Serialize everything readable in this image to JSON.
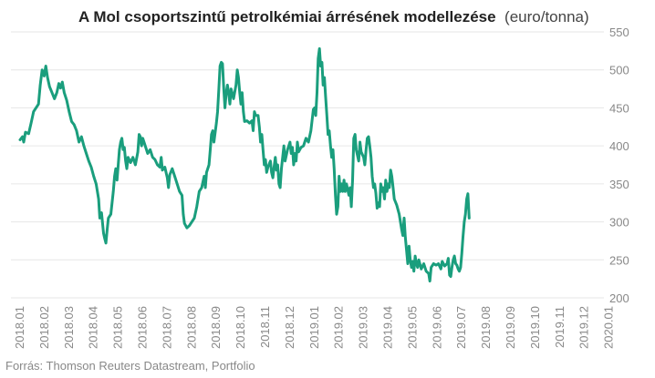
{
  "source": "Forrás: Thomson Reuters Datastream, Portfolio",
  "colors": {
    "line": "#1a9e7d",
    "grid": "#e6e6e6",
    "axis": "#888888"
  },
  "chart_data": {
    "type": "line",
    "title": "A Mol csoportszintű petrolkémiai árrésének modellezése",
    "title_unit": "(euro/tonna)",
    "ylim": [
      200,
      550
    ],
    "yticks": [
      "200",
      "250",
      "300",
      "350",
      "400",
      "450",
      "500",
      "550"
    ],
    "y_axis_position": "right",
    "grid": true,
    "categories": [
      "2018.01",
      "2018.02",
      "2018.03",
      "2018.04",
      "2018.05",
      "2018.06",
      "2018.07",
      "2018.08",
      "2018.09",
      "2018.10",
      "2018.11",
      "2018.12",
      "2019.01",
      "2019.02",
      "2019.03",
      "2019.04",
      "2019.05",
      "2019.06",
      "2019.07",
      "2019.08",
      "2019.09",
      "2019.10",
      "2019.11",
      "2019.12",
      "2020.01"
    ],
    "series": [
      {
        "values": [
          [
            0.0,
            408
          ],
          [
            0.1,
            412
          ],
          [
            0.15,
            405
          ],
          [
            0.22,
            418
          ],
          [
            0.35,
            416
          ],
          [
            0.45,
            430
          ],
          [
            0.55,
            445
          ],
          [
            0.65,
            450
          ],
          [
            0.75,
            455
          ],
          [
            0.82,
            480
          ],
          [
            0.9,
            500
          ],
          [
            0.98,
            492
          ],
          [
            1.05,
            505
          ],
          [
            1.12,
            490
          ],
          [
            1.2,
            478
          ],
          [
            1.3,
            470
          ],
          [
            1.4,
            462
          ],
          [
            1.5,
            470
          ],
          [
            1.58,
            482
          ],
          [
            1.65,
            476
          ],
          [
            1.72,
            484
          ],
          [
            1.8,
            470
          ],
          [
            1.9,
            460
          ],
          [
            2.0,
            445
          ],
          [
            2.1,
            432
          ],
          [
            2.2,
            428
          ],
          [
            2.3,
            420
          ],
          [
            2.4,
            405
          ],
          [
            2.5,
            412
          ],
          [
            2.6,
            400
          ],
          [
            2.7,
            390
          ],
          [
            2.8,
            380
          ],
          [
            2.9,
            372
          ],
          [
            3.0,
            360
          ],
          [
            3.1,
            350
          ],
          [
            3.2,
            330
          ],
          [
            3.25,
            305
          ],
          [
            3.32,
            312
          ],
          [
            3.4,
            285
          ],
          [
            3.45,
            278
          ],
          [
            3.5,
            272
          ],
          [
            3.55,
            290
          ],
          [
            3.6,
            305
          ],
          [
            3.7,
            310
          ],
          [
            3.8,
            340
          ],
          [
            3.85,
            360
          ],
          [
            3.9,
            370
          ],
          [
            3.95,
            355
          ],
          [
            4.0,
            375
          ],
          [
            4.05,
            395
          ],
          [
            4.1,
            405
          ],
          [
            4.15,
            410
          ],
          [
            4.2,
            395
          ],
          [
            4.25,
            398
          ],
          [
            4.3,
            380
          ],
          [
            4.35,
            370
          ],
          [
            4.4,
            385
          ],
          [
            4.5,
            378
          ],
          [
            4.6,
            385
          ],
          [
            4.7,
            375
          ],
          [
            4.8,
            392
          ],
          [
            4.85,
            415
          ],
          [
            4.9,
            412
          ],
          [
            4.95,
            400
          ],
          [
            5.0,
            410
          ],
          [
            5.1,
            400
          ],
          [
            5.2,
            390
          ],
          [
            5.3,
            395
          ],
          [
            5.4,
            385
          ],
          [
            5.5,
            382
          ],
          [
            5.6,
            375
          ],
          [
            5.7,
            372
          ],
          [
            5.75,
            385
          ],
          [
            5.8,
            368
          ],
          [
            5.9,
            372
          ],
          [
            6.0,
            358
          ],
          [
            6.05,
            345
          ],
          [
            6.1,
            362
          ],
          [
            6.2,
            370
          ],
          [
            6.3,
            360
          ],
          [
            6.4,
            350
          ],
          [
            6.5,
            340
          ],
          [
            6.6,
            335
          ],
          [
            6.65,
            310
          ],
          [
            6.7,
            298
          ],
          [
            6.8,
            292
          ],
          [
            6.9,
            295
          ],
          [
            7.0,
            300
          ],
          [
            7.1,
            305
          ],
          [
            7.2,
            320
          ],
          [
            7.3,
            340
          ],
          [
            7.4,
            345
          ],
          [
            7.5,
            360
          ],
          [
            7.55,
            345
          ],
          [
            7.6,
            365
          ],
          [
            7.7,
            375
          ],
          [
            7.75,
            395
          ],
          [
            7.8,
            415
          ],
          [
            7.85,
            420
          ],
          [
            7.9,
            405
          ],
          [
            8.0,
            430
          ],
          [
            8.05,
            445
          ],
          [
            8.1,
            475
          ],
          [
            8.15,
            505
          ],
          [
            8.2,
            510
          ],
          [
            8.25,
            508
          ],
          [
            8.3,
            475
          ],
          [
            8.35,
            450
          ],
          [
            8.4,
            470
          ],
          [
            8.45,
            480
          ],
          [
            8.5,
            470
          ],
          [
            8.55,
            455
          ],
          [
            8.6,
            475
          ],
          [
            8.7,
            462
          ],
          [
            8.8,
            480
          ],
          [
            8.85,
            500
          ],
          [
            8.9,
            490
          ],
          [
            8.95,
            470
          ],
          [
            9.0,
            455
          ],
          [
            9.05,
            470
          ],
          [
            9.1,
            445
          ],
          [
            9.15,
            432
          ],
          [
            9.25,
            433
          ],
          [
            9.35,
            430
          ],
          [
            9.45,
            433
          ],
          [
            9.5,
            420
          ],
          [
            9.55,
            445
          ],
          [
            9.6,
            440
          ],
          [
            9.7,
            440
          ],
          [
            9.75,
            425
          ],
          [
            9.8,
            405
          ],
          [
            9.85,
            415
          ],
          [
            9.9,
            395
          ],
          [
            9.95,
            375
          ],
          [
            10.0,
            382
          ],
          [
            10.05,
            365
          ],
          [
            10.1,
            372
          ],
          [
            10.2,
            380
          ],
          [
            10.25,
            365
          ],
          [
            10.3,
            358
          ],
          [
            10.35,
            372
          ],
          [
            10.4,
            385
          ],
          [
            10.45,
            368
          ],
          [
            10.5,
            375
          ],
          [
            10.55,
            350
          ],
          [
            10.6,
            345
          ],
          [
            10.65,
            370
          ],
          [
            10.75,
            400
          ],
          [
            10.8,
            380
          ],
          [
            10.9,
            395
          ],
          [
            11.0,
            405
          ],
          [
            11.05,
            390
          ],
          [
            11.1,
            398
          ],
          [
            11.15,
            375
          ],
          [
            11.2,
            390
          ],
          [
            11.25,
            380
          ],
          [
            11.3,
            405
          ],
          [
            11.35,
            392
          ],
          [
            11.45,
            398
          ],
          [
            11.55,
            400
          ],
          [
            11.65,
            410
          ],
          [
            11.75,
            405
          ],
          [
            11.85,
            420
          ],
          [
            11.95,
            448
          ],
          [
            12.0,
            450
          ],
          [
            12.05,
            440
          ],
          [
            12.1,
            470
          ],
          [
            12.15,
            515
          ],
          [
            12.2,
            528
          ],
          [
            12.25,
            505
          ],
          [
            12.3,
            510
          ],
          [
            12.35,
            480
          ],
          [
            12.4,
            490
          ],
          [
            12.45,
            465
          ],
          [
            12.5,
            440
          ],
          [
            12.55,
            415
          ],
          [
            12.6,
            420
          ],
          [
            12.65,
            400
          ],
          [
            12.7,
            385
          ],
          [
            12.75,
            395
          ],
          [
            12.8,
            370
          ],
          [
            12.85,
            335
          ],
          [
            12.9,
            310
          ],
          [
            12.95,
            320
          ],
          [
            13.0,
            360
          ],
          [
            13.05,
            340
          ],
          [
            13.1,
            350
          ],
          [
            13.15,
            340
          ],
          [
            13.2,
            355
          ],
          [
            13.25,
            340
          ],
          [
            13.3,
            350
          ],
          [
            13.4,
            335
          ],
          [
            13.45,
            345
          ],
          [
            13.5,
            320
          ],
          [
            13.55,
            355
          ],
          [
            13.6,
            410
          ],
          [
            13.65,
            415
          ],
          [
            13.7,
            395
          ],
          [
            13.8,
            380
          ],
          [
            13.85,
            405
          ],
          [
            13.9,
            392
          ],
          [
            14.0,
            385
          ],
          [
            14.05,
            375
          ],
          [
            14.1,
            395
          ],
          [
            14.15,
            410
          ],
          [
            14.2,
            412
          ],
          [
            14.25,
            400
          ],
          [
            14.3,
            385
          ],
          [
            14.35,
            360
          ],
          [
            14.4,
            345
          ],
          [
            14.45,
            350
          ],
          [
            14.5,
            338
          ],
          [
            14.55,
            318
          ],
          [
            14.6,
            325
          ],
          [
            14.65,
            320
          ],
          [
            14.7,
            350
          ],
          [
            14.75,
            340
          ],
          [
            14.8,
            345
          ],
          [
            14.85,
            330
          ],
          [
            14.9,
            355
          ],
          [
            14.95,
            340
          ],
          [
            15.0,
            350
          ],
          [
            15.05,
            345
          ],
          [
            15.1,
            368
          ],
          [
            15.15,
            360
          ],
          [
            15.2,
            345
          ],
          [
            15.25,
            330
          ],
          [
            15.35,
            322
          ],
          [
            15.45,
            310
          ],
          [
            15.55,
            290
          ],
          [
            15.6,
            282
          ],
          [
            15.65,
            305
          ],
          [
            15.7,
            280
          ],
          [
            15.75,
            262
          ],
          [
            15.8,
            245
          ],
          [
            15.85,
            268
          ],
          [
            15.9,
            250
          ],
          [
            15.95,
            240
          ],
          [
            16.0,
            248
          ],
          [
            16.05,
            235
          ],
          [
            16.1,
            255
          ],
          [
            16.15,
            245
          ],
          [
            16.2,
            240
          ],
          [
            16.25,
            250
          ],
          [
            16.35,
            238
          ],
          [
            16.45,
            245
          ],
          [
            16.55,
            235
          ],
          [
            16.65,
            232
          ],
          [
            16.7,
            222
          ],
          [
            16.75,
            240
          ],
          [
            16.85,
            245
          ],
          [
            16.95,
            243
          ],
          [
            17.05,
            245
          ],
          [
            17.15,
            238
          ],
          [
            17.2,
            248
          ],
          [
            17.3,
            242
          ],
          [
            17.4,
            245
          ],
          [
            17.45,
            252
          ],
          [
            17.5,
            230
          ],
          [
            17.55,
            228
          ],
          [
            17.6,
            240
          ],
          [
            17.65,
            250
          ],
          [
            17.7,
            255
          ],
          [
            17.75,
            245
          ],
          [
            17.8,
            243
          ],
          [
            17.85,
            238
          ],
          [
            17.9,
            235
          ],
          [
            17.95,
            240
          ],
          [
            18.0,
            258
          ],
          [
            18.05,
            280
          ],
          [
            18.1,
            300
          ],
          [
            18.15,
            310
          ],
          [
            18.2,
            330
          ],
          [
            18.25,
            337
          ],
          [
            18.3,
            305
          ]
        ]
      }
    ]
  }
}
